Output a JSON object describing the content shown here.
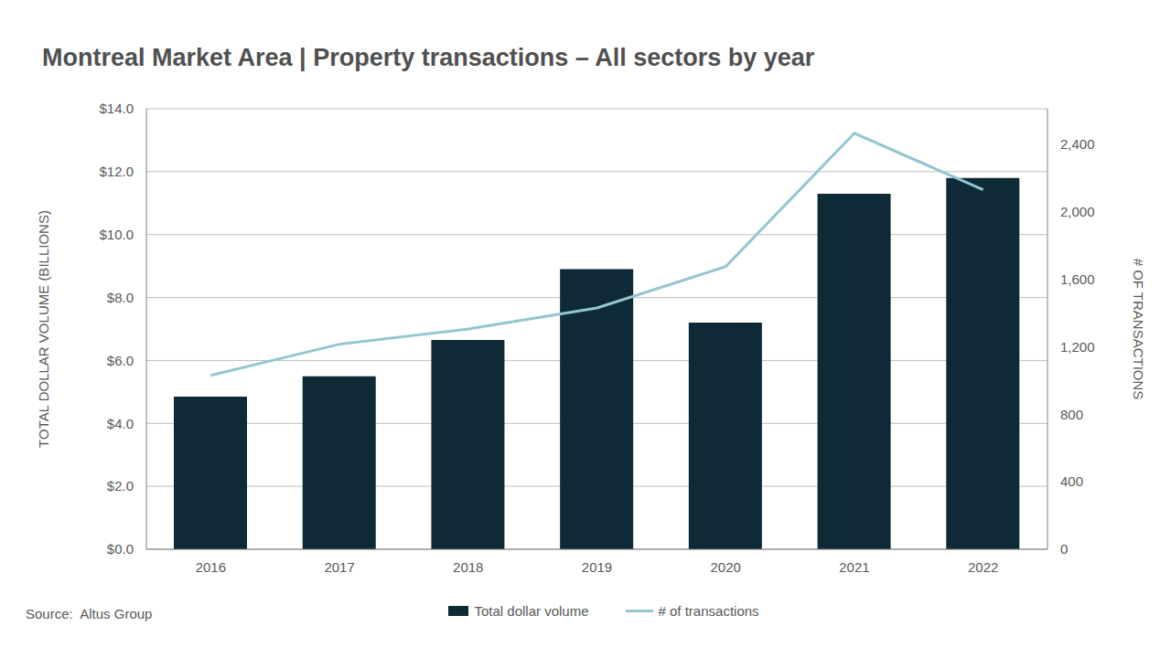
{
  "chart_data": {
    "type": "bar",
    "title": "Montreal Market Area | Property transactions – All sectors by year",
    "source": "Source:  Altus Group",
    "y_label": "TOTAL DOLLAR VOLUME (BILLIONS)",
    "y2_label": "# OF TRANSACTIONS",
    "categories": [
      "2016",
      "2017",
      "2018",
      "2019",
      "2020",
      "2021",
      "2022"
    ],
    "series": [
      {
        "name": "Total dollar volume",
        "type": "bar",
        "color": "#0d2a36",
        "values": [
          4.85,
          5.5,
          6.65,
          8.9,
          7.2,
          11.3,
          11.8
        ]
      },
      {
        "name": "# of transactions",
        "type": "line",
        "color": "#93c6cf",
        "axis": "y2",
        "values": [
          1030,
          1215,
          1305,
          1430,
          1675,
          2465,
          2130
        ]
      }
    ],
    "ylim": [
      0,
      14
    ],
    "yticks": [
      {
        "value": 0,
        "label": "$0.0"
      },
      {
        "value": 2,
        "label": "$2.0"
      },
      {
        "value": 4,
        "label": "$4.0"
      },
      {
        "value": 6,
        "label": "$6.0"
      },
      {
        "value": 8,
        "label": "$8.0"
      },
      {
        "value": 10,
        "label": "$10.0"
      },
      {
        "value": 12,
        "label": "$12.0"
      },
      {
        "value": 14,
        "label": "$14.0"
      }
    ],
    "y2lim": [
      0,
      2610
    ],
    "y2ticks": [
      0,
      400,
      800,
      {
        "value": 1200,
        "label": "1,200"
      },
      {
        "value": 1600,
        "label": "1,600"
      },
      {
        "value": 2000,
        "label": "2,000"
      },
      {
        "value": 2400,
        "label": "2,400"
      }
    ],
    "grid": true,
    "legend": "bottom"
  }
}
